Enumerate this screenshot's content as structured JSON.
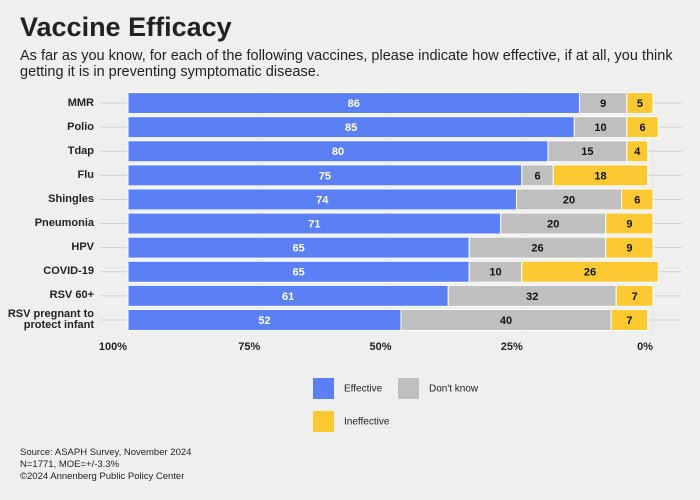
{
  "chart_data": {
    "type": "stacked-bar-horizontal",
    "title": "Vaccine Efficacy",
    "subtitle": "As far as you know, for each of the following vaccines, please indicate how effective, if at all, you think getting it is in preventing symptomatic disease.",
    "categories": [
      "MMR",
      "Polio",
      "Tdap",
      "Flu",
      "Shingles",
      "Pneumonia",
      "HPV",
      "COVID-19",
      "RSV 60+",
      "RSV pregnant to protect infant"
    ],
    "series": [
      {
        "name": "Effective",
        "color": "#5b7ff5",
        "values": [
          86,
          85,
          80,
          75,
          74,
          71,
          65,
          65,
          61,
          52
        ]
      },
      {
        "name": "Don't know",
        "color": "#bfbfbf",
        "values": [
          9,
          10,
          15,
          6,
          20,
          20,
          26,
          10,
          32,
          40
        ]
      },
      {
        "name": "Ineffective",
        "color": "#fcc932",
        "values": [
          5,
          6,
          4,
          18,
          6,
          9,
          9,
          26,
          7,
          7
        ]
      }
    ],
    "xlim": [
      100,
      0
    ],
    "xticks": [
      {
        "value": 100,
        "label": "100%"
      },
      {
        "value": 75,
        "label": "75%"
      },
      {
        "value": 50,
        "label": "50%"
      },
      {
        "value": 25,
        "label": "25%"
      },
      {
        "value": 0,
        "label": "0%"
      }
    ],
    "notes": [
      "Source: ASAPH Survey, November 2024",
      "N=1771, MOE=+/-3.3%",
      "©2024 Annenberg Public Policy Center"
    ]
  }
}
